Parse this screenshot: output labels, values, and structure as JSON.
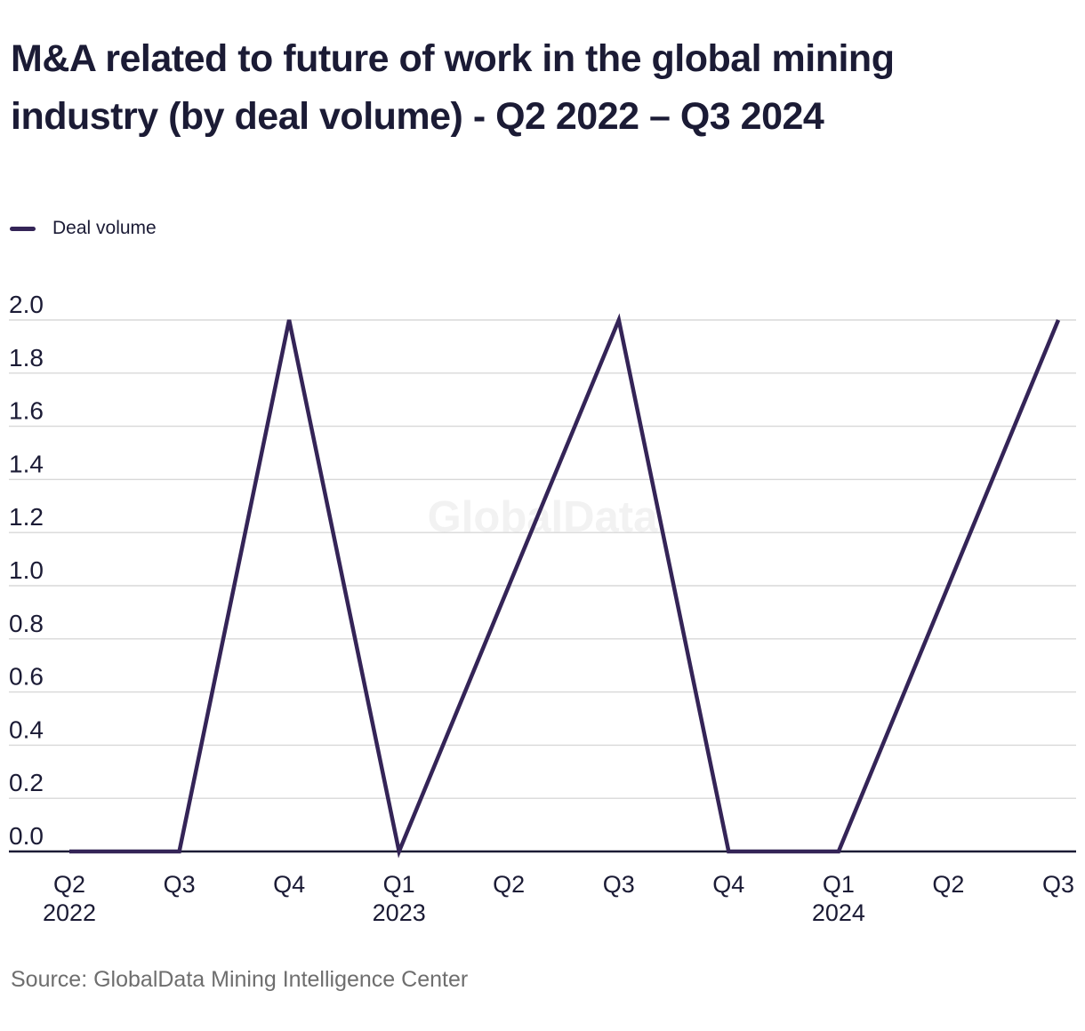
{
  "title": "M&A related to future of work in the global mining industry (by deal volume) - Q2 2022 – Q3 2024",
  "legend": {
    "label": "Deal volume",
    "color": "#342457"
  },
  "watermark": "GlobalData",
  "source": "Source: GlobalData Mining Intelligence Center",
  "colors": {
    "accent_line": "#342457",
    "text_dark": "#1b1b35",
    "gridline": "#d8d8d8",
    "axis": "#1b1b35",
    "source_text": "#6e6e6e",
    "watermark": "#f2f2f2"
  },
  "chart_data": {
    "type": "line",
    "title": "M&A related to future of work in the global mining industry (by deal volume) - Q2 2022 – Q3 2024",
    "categories": [
      "Q2 2022",
      "Q3 2022",
      "Q4 2022",
      "Q1 2023",
      "Q2 2023",
      "Q3 2023",
      "Q4 2023",
      "Q1 2024",
      "Q2 2024",
      "Q3 2024"
    ],
    "x_ticks": [
      {
        "label": "Q2",
        "year": "2022"
      },
      {
        "label": "Q3"
      },
      {
        "label": "Q4"
      },
      {
        "label": "Q1",
        "year": "2023"
      },
      {
        "label": "Q2"
      },
      {
        "label": "Q3"
      },
      {
        "label": "Q4"
      },
      {
        "label": "Q1",
        "year": "2024"
      },
      {
        "label": "Q2"
      },
      {
        "label": "Q3"
      }
    ],
    "series": [
      {
        "name": "Deal volume",
        "values": [
          0,
          0,
          2,
          0,
          1,
          2,
          0,
          0,
          1,
          2
        ],
        "color": "#342457"
      }
    ],
    "xlabel": "",
    "ylabel": "",
    "ylim": [
      0.0,
      2.0
    ],
    "y_ticks": [
      "0.0",
      "0.2",
      "0.4",
      "0.6",
      "0.8",
      "1.0",
      "1.2",
      "1.4",
      "1.6",
      "1.8",
      "2.0"
    ],
    "grid": "horizontal",
    "legend_position": "top-left"
  }
}
